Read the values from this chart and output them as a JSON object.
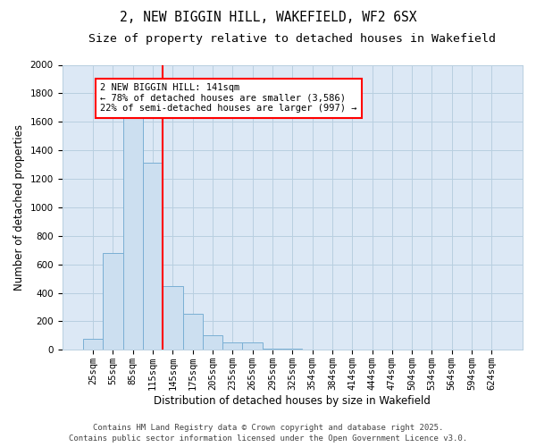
{
  "title_line1": "2, NEW BIGGIN HILL, WAKEFIELD, WF2 6SX",
  "title_line2": "Size of property relative to detached houses in Wakefield",
  "xlabel": "Distribution of detached houses by size in Wakefield",
  "ylabel": "Number of detached properties",
  "categories": [
    "25sqm",
    "55sqm",
    "85sqm",
    "115sqm",
    "145sqm",
    "175sqm",
    "205sqm",
    "235sqm",
    "265sqm",
    "295sqm",
    "325sqm",
    "354sqm",
    "384sqm",
    "414sqm",
    "444sqm",
    "474sqm",
    "504sqm",
    "534sqm",
    "564sqm",
    "594sqm",
    "624sqm"
  ],
  "values": [
    75,
    680,
    1650,
    1310,
    450,
    255,
    100,
    55,
    55,
    10,
    10,
    5,
    5,
    0,
    0,
    0,
    0,
    0,
    0,
    0,
    0
  ],
  "bar_color": "#ccdff0",
  "bar_edge_color": "#7aafd4",
  "vline_index": 4,
  "vline_color": "red",
  "annotation_text": "2 NEW BIGGIN HILL: 141sqm\n← 78% of detached houses are smaller (3,586)\n22% of semi-detached houses are larger (997) →",
  "annotation_box_edgecolor": "red",
  "annotation_box_bg": "white",
  "ylim": [
    0,
    2000
  ],
  "yticks": [
    0,
    200,
    400,
    600,
    800,
    1000,
    1200,
    1400,
    1600,
    1800,
    2000
  ],
  "grid_color": "#b8cfe0",
  "bg_color": "#dce8f5",
  "footer_line1": "Contains HM Land Registry data © Crown copyright and database right 2025.",
  "footer_line2": "Contains public sector information licensed under the Open Government Licence v3.0.",
  "title1_fontsize": 10.5,
  "title2_fontsize": 9.5,
  "axis_label_fontsize": 8.5,
  "tick_fontsize": 7.5,
  "annotation_fontsize": 7.5,
  "footer_fontsize": 6.5
}
